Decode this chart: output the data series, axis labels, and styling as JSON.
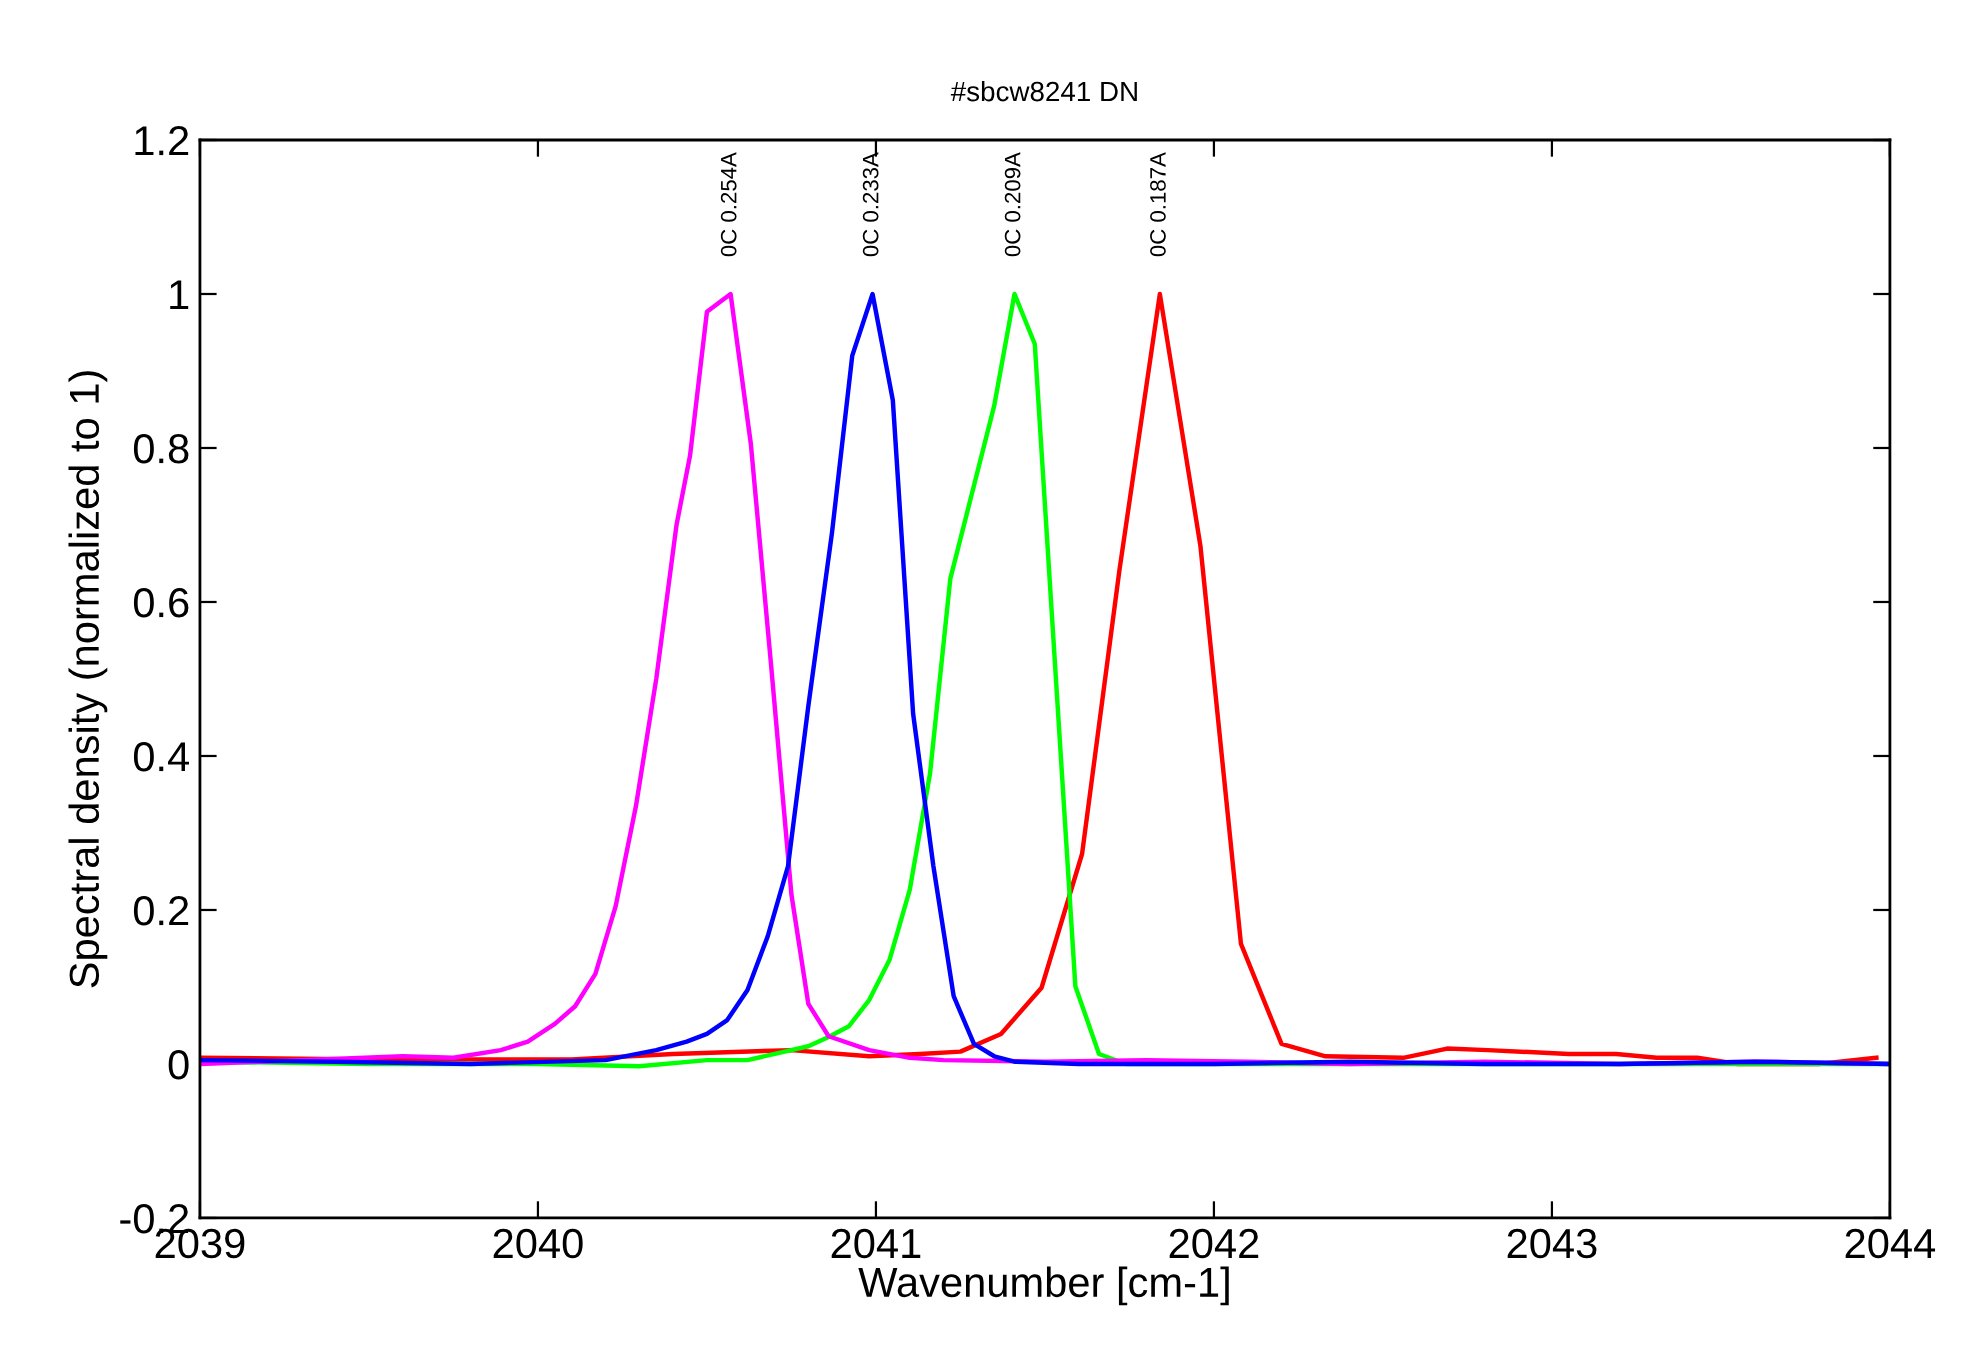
{
  "chart_data": {
    "type": "line",
    "title": "#sbcw8241 DN",
    "xlabel": "Wavenumber [cm-1]",
    "ylabel": "Spectral density (normalized to 1)",
    "xlim": [
      2039,
      2044
    ],
    "ylim": [
      -0.2,
      1.2
    ],
    "xticks": [
      2039,
      2040,
      2041,
      2042,
      2043,
      2044
    ],
    "yticks": [
      {
        "value": -0.2,
        "label": "-0.2"
      },
      0,
      {
        "value": 0.2,
        "label": "0.2"
      },
      {
        "value": 0.4,
        "label": "0.4"
      },
      {
        "value": 0.6,
        "label": "0.6"
      },
      {
        "value": 0.8,
        "label": "0.8"
      },
      1,
      {
        "value": 1.2,
        "label": "1.2"
      }
    ],
    "grid": false,
    "marker": "none",
    "line_style": "solid",
    "annotations": [
      "0C 0.254A",
      "0C 0.233A",
      "0C 0.209A",
      "0C 0.187A"
    ],
    "series": [
      {
        "color": "#ff0000",
        "x": [
          2039.0,
          2039.5,
          2040.1,
          2040.4,
          2040.75,
          2040.98,
          2041.13,
          2041.25,
          2041.37,
          2041.49,
          2041.61,
          2041.72,
          2041.84,
          2041.96,
          2042.08,
          2042.2,
          2042.33,
          2042.56,
          2042.69,
          2042.81,
          2043.05,
          2043.19,
          2043.31,
          2043.43,
          2043.55,
          2043.79,
          2043.96
        ],
        "values": [
          0.008,
          0.006,
          0.006,
          0.013,
          0.018,
          0.01,
          0.013,
          0.016,
          0.039,
          0.099,
          0.273,
          0.64,
          1.0,
          0.673,
          0.156,
          0.026,
          0.01,
          0.008,
          0.02,
          0.018,
          0.013,
          0.013,
          0.008,
          0.008,
          0.0,
          0.0,
          0.008
        ]
      },
      {
        "color": "#00ff00",
        "x": [
          2039.0,
          2039.5,
          2040.0,
          2040.3,
          2040.5,
          2040.62,
          2040.73,
          2040.8,
          2040.86,
          2040.92,
          2040.98,
          2041.04,
          2041.1,
          2041.16,
          2041.22,
          2041.35,
          2041.41,
          2041.47,
          2041.59,
          2041.66,
          2041.74,
          2042.0,
          2042.5,
          2043.0,
          2043.5,
          2044.0
        ],
        "values": [
          0.003,
          0.0,
          0.0,
          -0.003,
          0.005,
          0.005,
          0.016,
          0.023,
          0.035,
          0.049,
          0.083,
          0.135,
          0.226,
          0.377,
          0.63,
          0.855,
          1.0,
          0.935,
          0.101,
          0.013,
          0.0,
          0.0,
          0.0,
          0.0,
          0.0,
          0.0
        ]
      },
      {
        "color": "#ff00ff",
        "x": [
          2039.0,
          2039.3,
          2039.6,
          2039.75,
          2039.89,
          2039.97,
          2040.05,
          2040.11,
          2040.17,
          2040.23,
          2040.29,
          2040.35,
          2040.41,
          2040.45,
          2040.5,
          2040.57,
          2040.63,
          2040.69,
          2040.75,
          2040.8,
          2040.86,
          2040.98,
          2041.1,
          2041.2,
          2041.5,
          2041.8,
          2042.1,
          2042.4,
          2042.8,
          2043.2,
          2043.6,
          2044.0
        ],
        "values": [
          0.0,
          0.005,
          0.01,
          0.008,
          0.018,
          0.029,
          0.052,
          0.075,
          0.117,
          0.205,
          0.335,
          0.5,
          0.7,
          0.79,
          0.977,
          1.0,
          0.805,
          0.517,
          0.22,
          0.078,
          0.036,
          0.018,
          0.008,
          0.005,
          0.003,
          0.005,
          0.003,
          0.0,
          0.003,
          0.0,
          0.003,
          0.0
        ]
      },
      {
        "color": "#0000ff",
        "x": [
          2039.0,
          2039.4,
          2039.8,
          2040.2,
          2040.35,
          2040.44,
          2040.5,
          2040.56,
          2040.62,
          2040.68,
          2040.74,
          2040.8,
          2040.87,
          2040.93,
          2040.99,
          2041.05,
          2041.11,
          2041.17,
          2041.23,
          2041.29,
          2041.35,
          2041.41,
          2041.6,
          2042.0,
          2042.4,
          2042.8,
          2043.2,
          2043.6,
          2044.0
        ],
        "values": [
          0.005,
          0.003,
          0.0,
          0.005,
          0.018,
          0.029,
          0.039,
          0.057,
          0.096,
          0.166,
          0.257,
          0.465,
          0.69,
          0.92,
          1.0,
          0.862,
          0.455,
          0.257,
          0.088,
          0.026,
          0.01,
          0.003,
          0.0,
          0.0,
          0.003,
          0.0,
          0.0,
          0.003,
          0.0
        ]
      }
    ]
  }
}
